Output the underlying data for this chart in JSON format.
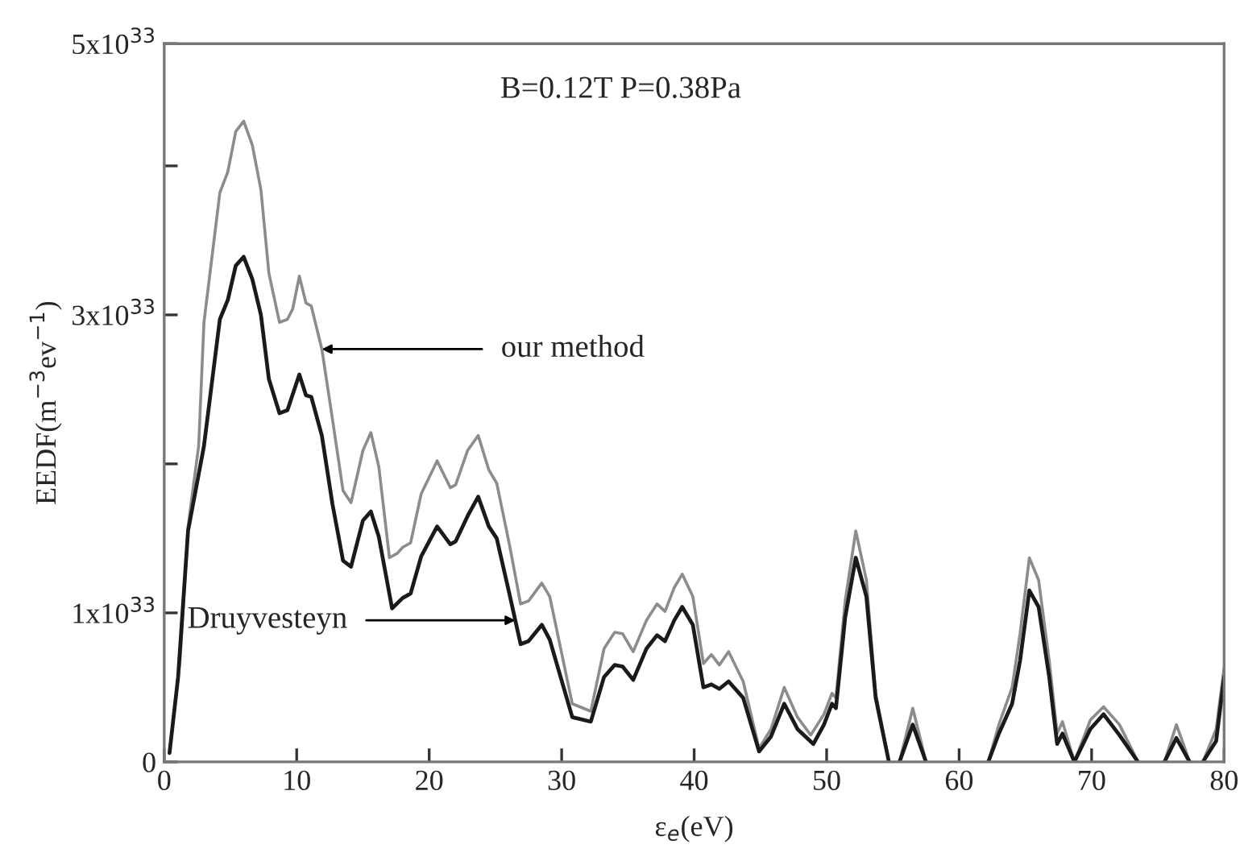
{
  "chart_data": {
    "type": "line",
    "xlabel": "ε$_{e}$(eV)",
    "ylabel": "EEDF(m$^{−3}$ev$^{−1}$)",
    "xlim": [
      0,
      80
    ],
    "xticks": [
      0,
      10,
      20,
      30,
      40,
      50,
      60,
      70,
      80
    ],
    "ylim": [
      0,
      4.82e+33
    ],
    "yticks": [
      {
        "value": 0,
        "label": "0"
      },
      {
        "value": 1e+33,
        "label": "1x10$^{33}$"
      },
      {
        "value": 2e+33,
        "label": null
      },
      {
        "value": 3e+33,
        "label": "3x10$^{33}$"
      },
      {
        "value": 4e+33,
        "label": null
      },
      {
        "value": 4.82e+33,
        "label": "5x10$^{33}$"
      }
    ],
    "grid": false,
    "legend": false,
    "marker": "none",
    "line_style": "solid",
    "series": [
      {
        "color": "#8c8c8c",
        "x": [
          0.4,
          1.2,
          1.8,
          2.6,
          3.0,
          4.2,
          4.8,
          5.4,
          6.0,
          6.65,
          7.3,
          7.9,
          8.7,
          9.3,
          9.7,
          10.2,
          10.7,
          11.1,
          11.9,
          12.7,
          13.5,
          14.1,
          15.0,
          15.6,
          16.2,
          17.0,
          17.6,
          18.0,
          18.6,
          19.4,
          20.6,
          21.6,
          22.0,
          22.9,
          23.7,
          24.5,
          25.1,
          26.1,
          26.9,
          27.5,
          28.5,
          29.1,
          30.8,
          32.2,
          33.2,
          34.0,
          34.6,
          35.4,
          36.4,
          37.2,
          37.8,
          38.5,
          39.1,
          39.9,
          40.7,
          41.3,
          41.9,
          42.6,
          43.7,
          44.9,
          45.8,
          46.8,
          47.8,
          48.8,
          49.8,
          50.4,
          50.7,
          51.4,
          52.2,
          53.0,
          53.7,
          54.7,
          55.1,
          55.5,
          56.5,
          57.5,
          60.0,
          62.2,
          63.0,
          64.0,
          64.6,
          65.3,
          66.0,
          66.8,
          67.4,
          67.8,
          68.7,
          69.9,
          70.9,
          72.1,
          73.5,
          74.5,
          75.5,
          76.4,
          77.4,
          77.9,
          78.4,
          79.4,
          80.0
        ],
        "values": [
          6e+31,
          6.8e+32,
          1.58e+33,
          2.12e+33,
          2.95e+33,
          3.82e+33,
          3.96e+33,
          4.23e+33,
          4.3e+33,
          4.14e+33,
          3.84e+33,
          3.28e+33,
          2.95e+33,
          2.97e+33,
          3.04e+33,
          3.26e+33,
          3.08e+33,
          3.06e+33,
          2.77e+33,
          2.3e+33,
          1.82e+33,
          1.74e+33,
          2.09e+33,
          2.21e+33,
          1.98e+33,
          1.37e+33,
          1.4e+33,
          1.44e+33,
          1.47e+33,
          1.8e+33,
          2.02e+33,
          1.84e+33,
          1.86e+33,
          2.09e+33,
          2.19e+33,
          1.96e+33,
          1.87e+33,
          1.44e+33,
          1.06e+33,
          1.08e+33,
          1.2e+33,
          1.11e+33,
          3.9e+32,
          3.4e+32,
          7.6e+32,
          8.7e+32,
          8.6e+32,
          7.4e+32,
          9.5e+32,
          1.06e+33,
          1.01e+33,
          1.17e+33,
          1.26e+33,
          1.11e+33,
          6.6e+32,
          7.2e+32,
          6.5e+32,
          7.4e+32,
          5.4e+32,
          9e+31,
          2.2e+32,
          5e+32,
          3e+32,
          1.8e+32,
          3.2e+32,
          4.6e+32,
          4.3e+32,
          1.08e+33,
          1.55e+33,
          1.22e+33,
          4.6e+32,
          0,
          null,
          0,
          3.6e+32,
          0,
          null,
          0,
          2.5e+32,
          5e+32,
          8.6e+32,
          1.37e+33,
          1.22e+33,
          6.8e+32,
          1.9e+32,
          2.7e+32,
          0,
          2.8e+32,
          3.7e+32,
          2.5e+32,
          0,
          null,
          0,
          2.5e+32,
          0,
          null,
          0,
          2.2e+32,
          6.3e+32
        ]
      },
      {
        "color": "#1a1a1a",
        "x": [
          0.4,
          1.05,
          1.8,
          3.0,
          4.2,
          4.8,
          5.4,
          6.0,
          6.65,
          7.3,
          7.9,
          8.7,
          9.3,
          10.2,
          10.7,
          11.1,
          11.9,
          12.7,
          13.5,
          14.1,
          15.0,
          15.6,
          16.2,
          17.2,
          18.0,
          18.6,
          19.4,
          20.6,
          21.6,
          22.0,
          22.9,
          23.7,
          24.5,
          25.1,
          26.1,
          26.9,
          27.5,
          28.5,
          29.1,
          30.8,
          32.2,
          33.2,
          34.0,
          34.6,
          35.4,
          36.4,
          37.2,
          37.8,
          38.5,
          39.1,
          39.9,
          40.7,
          41.3,
          41.9,
          42.6,
          43.7,
          44.9,
          45.8,
          46.8,
          47.8,
          49.0,
          49.8,
          50.4,
          50.7,
          51.4,
          52.2,
          53.0,
          53.7,
          54.7,
          55.1,
          55.5,
          56.5,
          57.5,
          60.0,
          62.2,
          63.0,
          64.0,
          64.6,
          65.3,
          66.0,
          66.8,
          67.4,
          67.8,
          68.7,
          69.9,
          70.9,
          72.1,
          73.5,
          74.5,
          75.5,
          76.4,
          77.4,
          77.9,
          78.4,
          79.4,
          80.0
        ],
        "values": [
          6e+31,
          5.7e+32,
          1.55e+33,
          2.12e+33,
          2.97e+33,
          3.1e+33,
          3.33e+33,
          3.39e+33,
          3.24e+33,
          3e+33,
          2.57e+33,
          2.34e+33,
          2.36e+33,
          2.6e+33,
          2.46e+33,
          2.45e+33,
          2.19e+33,
          1.73e+33,
          1.35e+33,
          1.31e+33,
          1.62e+33,
          1.68e+33,
          1.51e+33,
          1.03e+33,
          1.1e+33,
          1.13e+33,
          1.38e+33,
          1.58e+33,
          1.46e+33,
          1.48e+33,
          1.65e+33,
          1.78e+33,
          1.58e+33,
          1.5e+33,
          1.11e+33,
          7.9e+32,
          8.1e+32,
          9.2e+32,
          8.2e+32,
          3e+32,
          2.7e+32,
          5.7e+32,
          6.5e+32,
          6.4e+32,
          5.5e+32,
          7.6e+32,
          8.5e+32,
          8.1e+32,
          9.5e+32,
          1.04e+33,
          9.2e+32,
          5e+32,
          5.2e+32,
          4.9e+32,
          5.4e+32,
          4.3e+32,
          7e+31,
          1.7e+32,
          3.9e+32,
          2.2e+32,
          1.2e+32,
          2.5e+32,
          3.9e+32,
          3.6e+32,
          9.7e+32,
          1.37e+33,
          1.11e+33,
          4.3e+32,
          0,
          null,
          0,
          2.5e+32,
          0,
          null,
          0,
          1.9e+32,
          3.9e+32,
          6.8e+32,
          1.15e+33,
          1.04e+33,
          5.7e+32,
          1.2e+32,
          1.9e+32,
          0,
          2.2e+32,
          3.2e+32,
          1.8e+32,
          0,
          null,
          0,
          1.6e+32,
          0,
          null,
          0,
          1.4e+32,
          5.7e+32
        ]
      }
    ],
    "annotations": [
      "B=0.12T P=0.38Pa",
      {
        "text": "our method",
        "x": 11.9,
        "y": 2.77e+33
      },
      {
        "text": "Druyvesteyn",
        "x": 26.5,
        "y": 9.5e+32
      }
    ]
  }
}
